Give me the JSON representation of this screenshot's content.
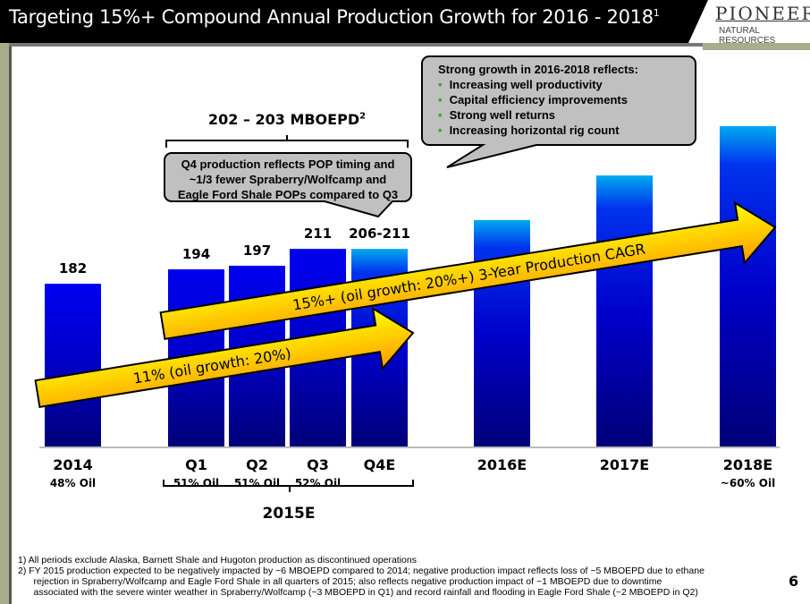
{
  "header": {
    "title": "Targeting 15%+ Compound Annual Production Growth for 2016 - 2018",
    "title_sup": "1",
    "logo_text": "PIONEER",
    "logo_sub": "NATURAL RESOURCES"
  },
  "chart_data": {
    "type": "bar",
    "title": "",
    "xlabel": "",
    "ylabel": "",
    "unit": "MBOEPD",
    "ylim": [
      46,
      313
    ],
    "grid": false,
    "categories": [
      "2014",
      "Q1",
      "Q2",
      "Q3",
      "Q4E",
      "2016E",
      "2017E",
      "2018E"
    ],
    "values": [
      182,
      194,
      197,
      211,
      211,
      235,
      272,
      313
    ],
    "range_low": [
      null,
      null,
      null,
      null,
      206,
      null,
      null,
      null
    ],
    "data_labels": [
      "182",
      "194",
      "197",
      "211",
      "206-211",
      "",
      "",
      ""
    ],
    "oil_labels": [
      "48% Oil",
      "51% Oil",
      "51% Oil",
      "52% Oil",
      "",
      "",
      "",
      "~60% Oil"
    ],
    "group_label": "2015E",
    "group_total": "202 – 203 MBOEPD",
    "group_total_sup": "2",
    "bar_color": "#0000ee",
    "bar_color_dark": "#000080",
    "arrows": [
      {
        "label": "11% (oil growth: 20%)"
      },
      {
        "label": "15%+ (oil growth: 20%+) 3-Year Production CAGR"
      }
    ],
    "arrow_color": "#ffee00"
  },
  "callouts": {
    "q4": [
      "Q4 production reflects POP timing and",
      "~1/3 fewer Spraberry/Wolfcamp and",
      "Eagle Ford Shale POPs compared to Q3"
    ],
    "growth_title": "Strong growth in 2016-2018 reflects:",
    "growth_bullets": [
      "Increasing well productivity",
      "Capital efficiency improvements",
      "Strong well returns",
      "Increasing horizontal rig count"
    ],
    "bullet_glyph": "•"
  },
  "footnotes": [
    "1)  All periods exclude Alaska, Barnett Shale and Hugoton production as discontinued operations",
    "2)  FY 2015 production expected to be negatively impacted by ~6 MBOEPD compared to 2014; negative production impact reflects loss of ~5 MBOEPD due to ethane",
    "      rejection in Spraberry/Wolfcamp and Eagle Ford Shale in all quarters of 2015; also reflects negative production impact of ~1 MBOEPD due to downtime",
    "      associated with the severe winter weather in Spraberry/Wolfcamp (~3 MBOEPD in Q1) and record rainfall and flooding in Eagle Ford Shale (~2 MBOEPD in Q2)"
  ],
  "page_number": "6"
}
